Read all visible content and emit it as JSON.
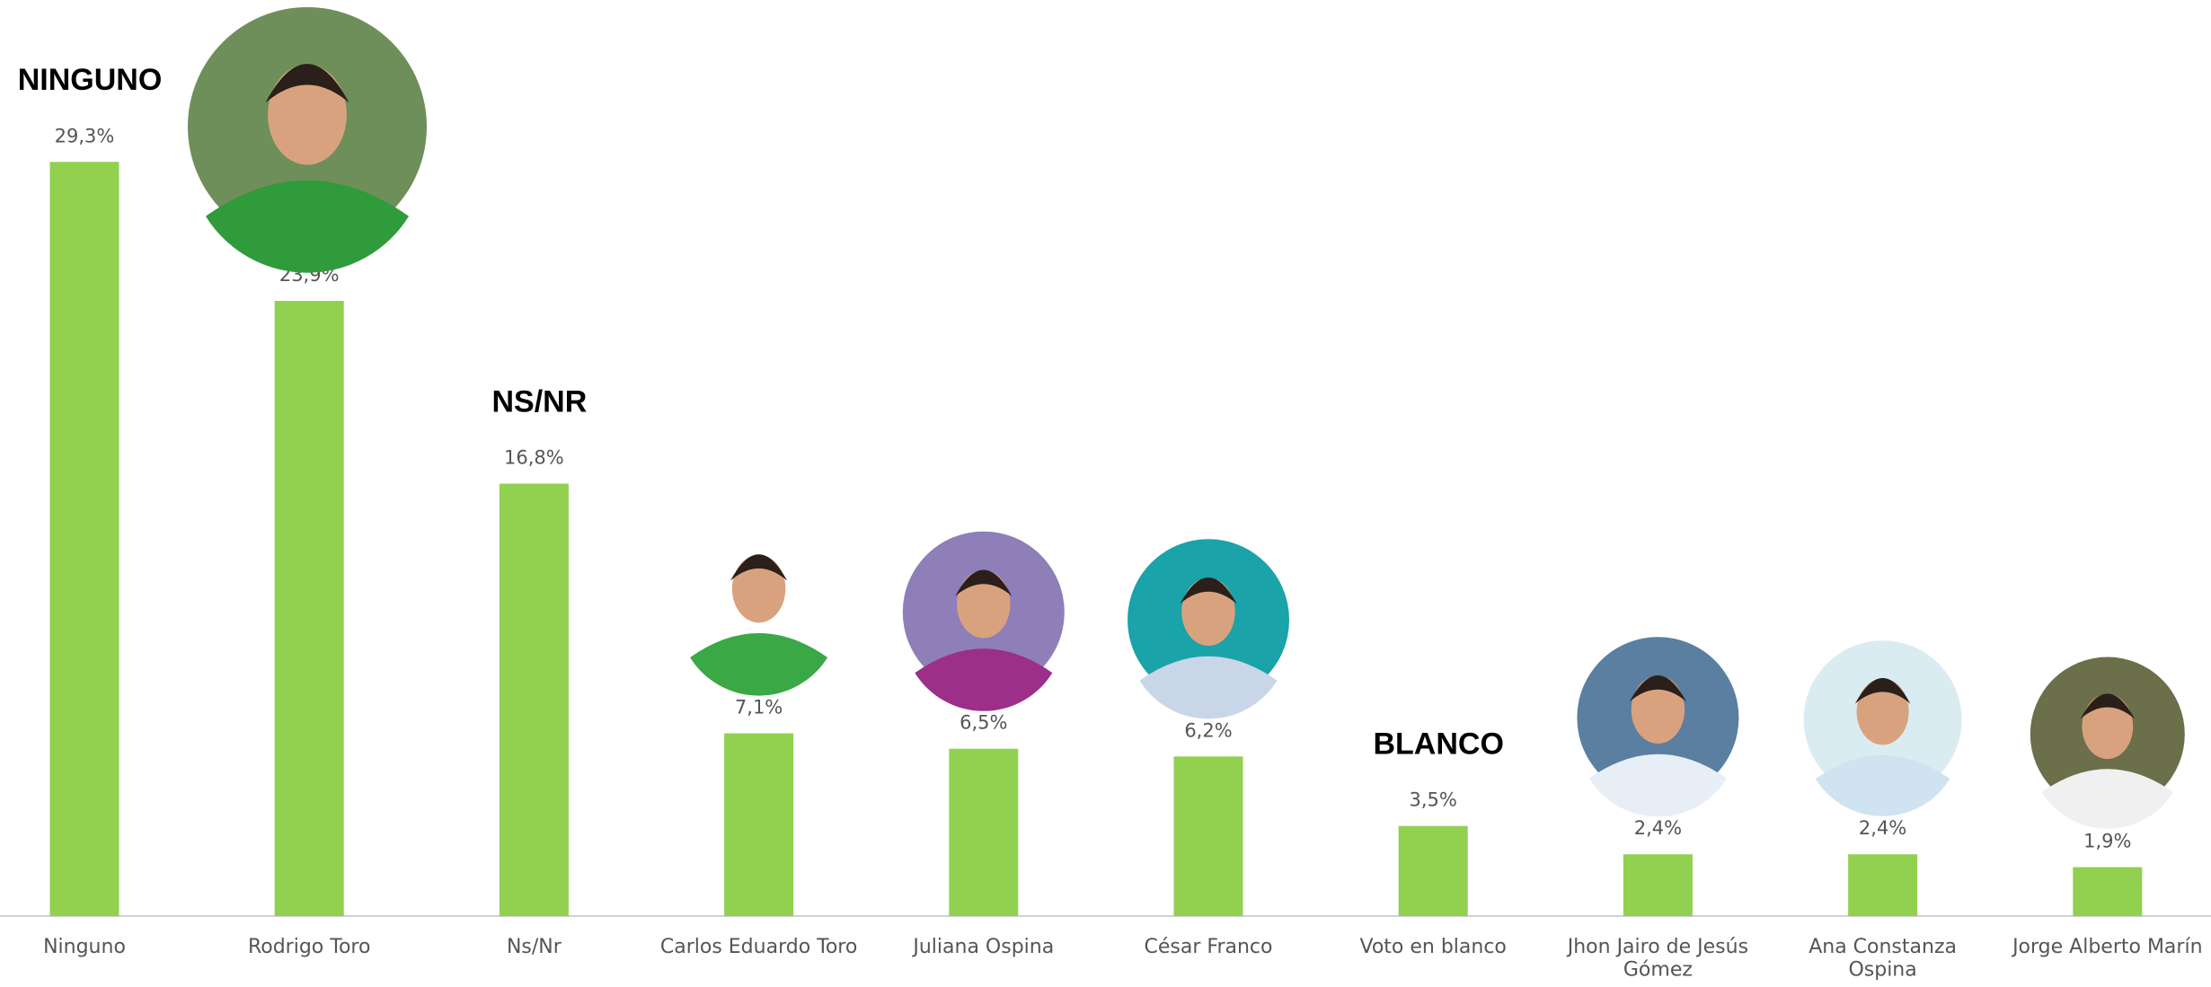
{
  "chart_data": {
    "type": "bar",
    "categories": [
      "Ninguno",
      "Rodrigo Toro",
      "Ns/Nr",
      "Carlos Eduardo Toro",
      "Juliana Ospina",
      "César Franco",
      "Voto en blanco",
      "Jhon Jairo de Jesús Gómez",
      "Ana Constanza Ospina",
      "Jorge Alberto Marín"
    ],
    "values": [
      29.3,
      23.9,
      16.8,
      7.1,
      6.5,
      6.2,
      3.5,
      2.4,
      2.4,
      1.9
    ],
    "value_labels": [
      "29,3%",
      "23,9%",
      "16,8%",
      "7,1%",
      "6,5%",
      "6,2%",
      "3,5%",
      "2,4%",
      "2,4%",
      "1,9%"
    ],
    "color": "#92d050",
    "annotations": [
      {
        "text": "NINGUNO",
        "at": "Ninguno"
      },
      {
        "text": "NS/NR",
        "at": "Ns/Nr"
      },
      {
        "text": "BLANCO",
        "at": "Voto en blanco"
      }
    ]
  }
}
